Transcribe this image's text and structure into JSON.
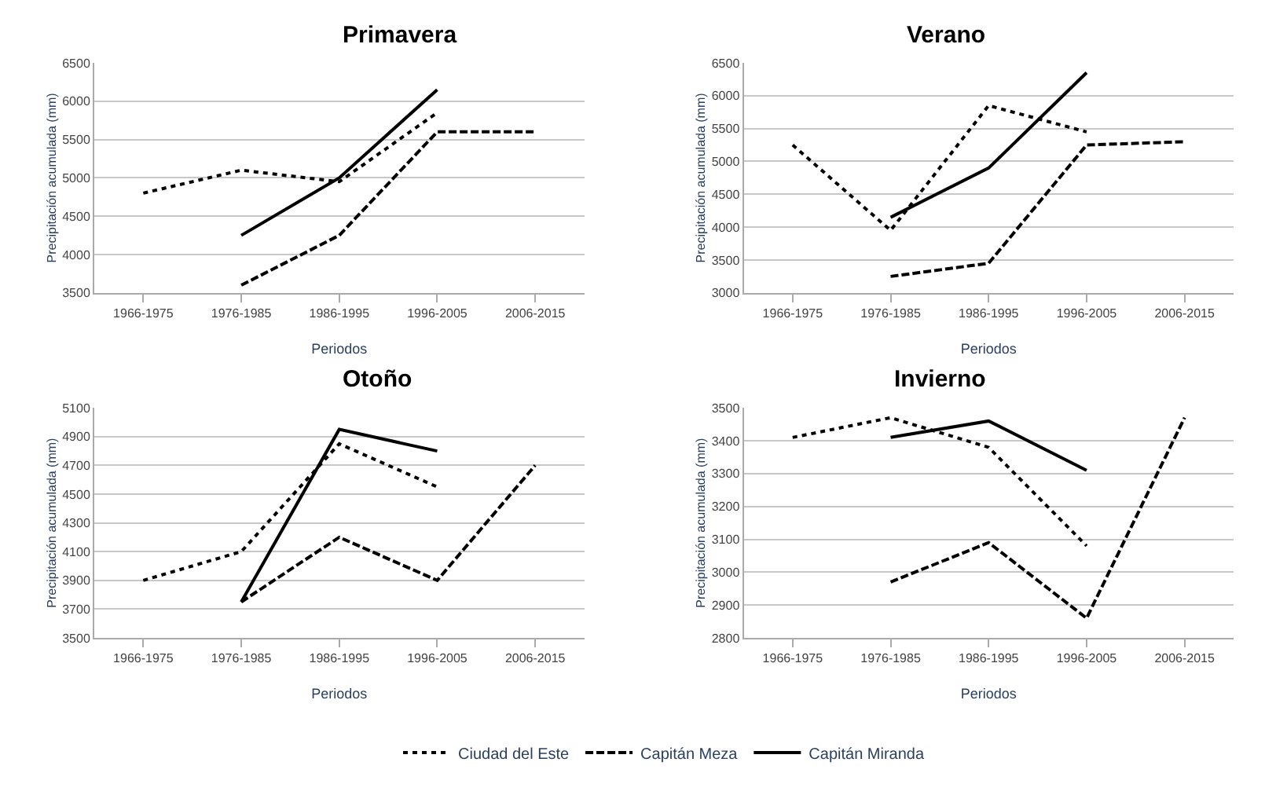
{
  "chart_data": [
    {
      "type": "line",
      "title": "Primavera",
      "xlabel": "Periodos",
      "ylabel": "Precipitación acumulada (mm)",
      "categories": [
        "1966-1975",
        "1976-1985",
        "1986-1995",
        "1996-2005",
        "2006-2015"
      ],
      "ylim": [
        3500,
        6500
      ],
      "yticks": [
        3500,
        4000,
        4500,
        5000,
        5500,
        6000,
        6500
      ],
      "grid": "y",
      "legend": "bottom",
      "marker": "none",
      "series": [
        {
          "name": "Ciudad del Este",
          "color": "#000000",
          "line_style": "dotted",
          "values": [
            4800,
            5100,
            4950,
            5850,
            null
          ]
        },
        {
          "name": "Capitán Meza",
          "color": "#000000",
          "line_style": "dashed",
          "values": [
            null,
            3600,
            4250,
            5600,
            5600
          ]
        },
        {
          "name": "Capitán Miranda",
          "color": "#000000",
          "line_style": "solid",
          "values": [
            null,
            4250,
            5000,
            6150,
            null
          ]
        }
      ]
    },
    {
      "type": "line",
      "title": "Verano",
      "xlabel": "Periodos",
      "ylabel": "Precipitación acumulada (mm)",
      "categories": [
        "1966-1975",
        "1976-1985",
        "1986-1995",
        "1996-2005",
        "2006-2015"
      ],
      "ylim": [
        3000,
        6500
      ],
      "yticks": [
        3000,
        3500,
        4000,
        4500,
        5000,
        5500,
        6000,
        6500
      ],
      "grid": "y",
      "legend": "bottom",
      "marker": "none",
      "series": [
        {
          "name": "Ciudad del Este",
          "color": "#000000",
          "line_style": "dotted",
          "values": [
            5250,
            3950,
            5850,
            5450,
            null
          ]
        },
        {
          "name": "Capitán Meza",
          "color": "#000000",
          "line_style": "dashed",
          "values": [
            null,
            3250,
            3450,
            5250,
            5300
          ]
        },
        {
          "name": "Capitán Miranda",
          "color": "#000000",
          "line_style": "solid",
          "values": [
            null,
            4150,
            4900,
            6350,
            null
          ]
        }
      ]
    },
    {
      "type": "line",
      "title": "Otoño",
      "xlabel": "Periodos",
      "ylabel": "Precipitación acumulada (mm)",
      "categories": [
        "1966-1975",
        "1976-1985",
        "1986-1995",
        "1996-2005",
        "2006-2015"
      ],
      "ylim": [
        3500,
        5100
      ],
      "yticks": [
        3500,
        3700,
        3900,
        4100,
        4300,
        4500,
        4700,
        4900,
        5100
      ],
      "grid": "y",
      "legend": "bottom",
      "marker": "none",
      "series": [
        {
          "name": "Ciudad del Este",
          "color": "#000000",
          "line_style": "dotted",
          "values": [
            3900,
            4100,
            4850,
            4550,
            null
          ]
        },
        {
          "name": "Capitán Meza",
          "color": "#000000",
          "line_style": "dashed",
          "values": [
            null,
            3750,
            4200,
            3900,
            4700
          ]
        },
        {
          "name": "Capitán Miranda",
          "color": "#000000",
          "line_style": "solid",
          "values": [
            null,
            3750,
            4950,
            4800,
            null
          ]
        }
      ]
    },
    {
      "type": "line",
      "title": "Invierno",
      "xlabel": "Periodos",
      "ylabel": "Precipitación acumulada (mm)",
      "categories": [
        "1966-1975",
        "1976-1985",
        "1986-1995",
        "1996-2005",
        "2006-2015"
      ],
      "ylim": [
        2800,
        3500
      ],
      "yticks": [
        2800,
        2900,
        3000,
        3100,
        3200,
        3300,
        3400,
        3500
      ],
      "grid": "y",
      "legend": "bottom",
      "marker": "none",
      "series": [
        {
          "name": "Ciudad del Este",
          "color": "#000000",
          "line_style": "dotted",
          "values": [
            3410,
            3470,
            3380,
            3080,
            null
          ]
        },
        {
          "name": "Capitán Meza",
          "color": "#000000",
          "line_style": "dashed",
          "values": [
            null,
            2970,
            3090,
            2860,
            3470
          ]
        },
        {
          "name": "Capitán Miranda",
          "color": "#000000",
          "line_style": "solid",
          "values": [
            null,
            3410,
            3460,
            3310,
            null
          ]
        }
      ]
    }
  ]
}
